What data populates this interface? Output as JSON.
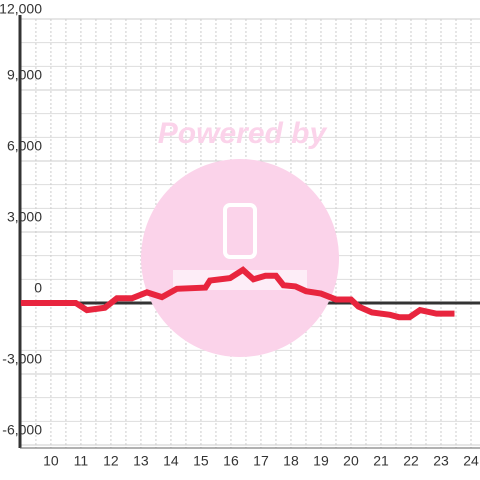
{
  "chart_data": {
    "type": "line",
    "watermark": "Powered by",
    "x": [
      9.0,
      10.83,
      11.2,
      11.8,
      12.2,
      12.7,
      13.2,
      13.7,
      14.2,
      15.15,
      15.3,
      15.97,
      16.4,
      16.75,
      17.15,
      17.5,
      17.75,
      18.15,
      18.5,
      19.0,
      19.5,
      20.0,
      20.25,
      20.7,
      21.3,
      21.6,
      21.95,
      22.3,
      22.85,
      23.45
    ],
    "series": [
      {
        "color": "#e8253e",
        "values": [
          0,
          0,
          -300,
          -200,
          200,
          200,
          450,
          250,
          600,
          650,
          950,
          1050,
          1400,
          1000,
          1150,
          1150,
          750,
          700,
          500,
          400,
          150,
          150,
          -150,
          -400,
          -500,
          -600,
          -600,
          -300,
          -450,
          -450
        ]
      }
    ],
    "xlim": [
      8.97,
      24.3
    ],
    "xticks": [
      10,
      11,
      12,
      13,
      14,
      15,
      16,
      17,
      18,
      19,
      20,
      21,
      22,
      23,
      24
    ],
    "ylim": [
      -6000,
      12000
    ],
    "yticks": [
      {
        "value": -6000,
        "label": "-6,000"
      },
      {
        "value": -3000,
        "label": "-3,000"
      },
      0,
      {
        "value": 3000,
        "label": "3,000"
      },
      {
        "value": 6000,
        "label": "6,000"
      },
      {
        "value": 9000,
        "label": "9,000"
      },
      {
        "value": 12000,
        "label": "12,000"
      }
    ],
    "grid": true
  }
}
